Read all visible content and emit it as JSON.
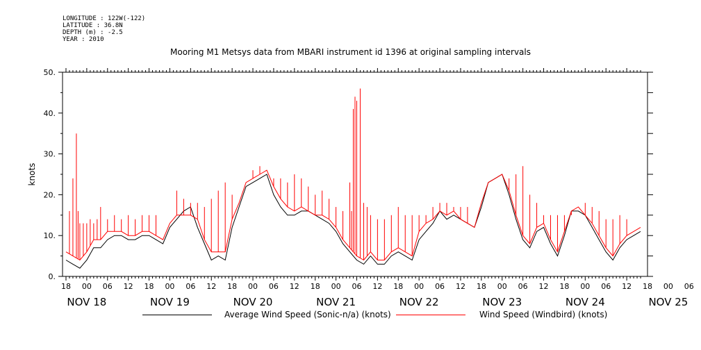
{
  "metadata": [
    "LONGITUDE : 122W(-122)",
    "LATITUDE : 36.8N",
    "DEPTH (m) : -2.5",
    "YEAR : 2010"
  ],
  "colors": {
    "sonic": "#000000",
    "windbird": "#ff0000"
  },
  "chart_data": {
    "type": "line",
    "title": "Mooring M1 Metsys data from MBARI instrument id 1396 at original sampling intervals",
    "xlabel": "",
    "ylabel": "knots",
    "ylim": [
      0,
      50
    ],
    "yticks": [
      "0.",
      "10.",
      "20.",
      "30.",
      "40.",
      "50."
    ],
    "x_unit": "hours since NOV 18 00:00",
    "xlim": [
      -7,
      162
    ],
    "hour_tick_labels": [
      "18",
      "00",
      "06",
      "12",
      "18",
      "00",
      "06",
      "12",
      "18",
      "00",
      "06",
      "12",
      "18",
      "00",
      "06",
      "12",
      "18",
      "00",
      "06",
      "12",
      "18",
      "00",
      "06",
      "12",
      "18",
      "00",
      "06",
      "12",
      "18",
      "00",
      "06",
      "12",
      "18"
    ],
    "day_labels": [
      "NOV 18",
      "NOV 19",
      "NOV 20",
      "NOV 21",
      "NOV 22",
      "NOV 23",
      "NOV 24",
      "NOV 25"
    ],
    "grid": false,
    "legend_position": "bottom",
    "series": [
      {
        "name": "Average Wind Speed (Sonic-n/a) (knots)",
        "x": [
          -6,
          -4,
          -2,
          0,
          2,
          4,
          6,
          8,
          10,
          12,
          14,
          16,
          18,
          20,
          22,
          24,
          26,
          28,
          30,
          32,
          34,
          36,
          38,
          40,
          42,
          44,
          46,
          48,
          50,
          52,
          54,
          56,
          58,
          60,
          62,
          64,
          66,
          68,
          70,
          72,
          74,
          76,
          78,
          80,
          82,
          84,
          86,
          88,
          90,
          92,
          94,
          96,
          98,
          100,
          102,
          104,
          106,
          108,
          110,
          112,
          114,
          116,
          118,
          120,
          122,
          124,
          126,
          128,
          130,
          132,
          134,
          136,
          138,
          140,
          142,
          144,
          146,
          148,
          150,
          152,
          154,
          156,
          158,
          160
        ],
        "values": [
          4,
          3,
          2,
          4,
          7,
          7,
          9,
          10,
          10,
          9,
          9,
          10,
          10,
          9,
          8,
          12,
          14,
          16,
          17,
          12,
          8,
          4,
          5,
          4,
          12,
          17,
          22,
          23,
          24,
          25,
          20,
          17,
          15,
          15,
          16,
          16,
          15,
          14,
          13,
          11,
          8,
          6,
          4,
          3,
          5,
          3,
          3,
          5,
          6,
          5,
          4,
          9,
          11,
          13,
          16,
          14,
          15,
          14,
          13,
          12,
          17,
          23,
          24,
          25,
          20,
          14,
          9,
          7,
          11,
          12,
          8,
          5,
          10,
          16,
          16,
          15,
          12,
          9,
          6,
          4,
          7,
          9,
          10,
          11
        ]
      },
      {
        "name": "Wind Speed (Windbird) (knots)",
        "x": [
          -6,
          -4,
          -2,
          0,
          2,
          4,
          6,
          8,
          10,
          12,
          14,
          16,
          18,
          20,
          22,
          24,
          26,
          28,
          30,
          32,
          34,
          36,
          38,
          40,
          42,
          44,
          46,
          48,
          50,
          52,
          54,
          56,
          58,
          60,
          62,
          64,
          66,
          68,
          70,
          72,
          74,
          76,
          78,
          80,
          82,
          84,
          86,
          88,
          90,
          92,
          94,
          96,
          98,
          100,
          102,
          104,
          106,
          108,
          110,
          112,
          114,
          116,
          118,
          120,
          122,
          124,
          126,
          128,
          130,
          132,
          134,
          136,
          138,
          140,
          142,
          144,
          146,
          148,
          150,
          152,
          154,
          156,
          158,
          160
        ],
        "values": [
          6,
          5,
          4,
          6,
          9,
          9,
          11,
          11,
          11,
          10,
          10,
          11,
          11,
          10,
          9,
          13,
          15,
          15,
          15,
          14,
          9,
          6,
          6,
          6,
          14,
          18,
          23,
          24,
          25,
          26,
          22,
          19,
          17,
          16,
          17,
          16,
          15,
          15,
          14,
          12,
          9,
          7,
          5,
          4,
          6,
          4,
          4,
          6,
          7,
          6,
          5,
          11,
          13,
          14,
          16,
          15,
          16,
          14,
          13,
          12,
          18,
          23,
          24,
          25,
          21,
          15,
          10,
          8,
          12,
          13,
          9,
          6,
          11,
          16,
          17,
          15,
          13,
          10,
          7,
          5,
          8,
          10,
          11,
          12
        ]
      }
    ],
    "spikes": {
      "series": "Wind Speed (Windbird) (knots)",
      "x": [
        -5,
        -4,
        -3,
        -2.5,
        -2,
        -1,
        0,
        1,
        2,
        3,
        4,
        6,
        8,
        10,
        12,
        14,
        16,
        18,
        20,
        26,
        28,
        30,
        32,
        34,
        36,
        38,
        40,
        42,
        44,
        48,
        50,
        52,
        54,
        56,
        58,
        60,
        62,
        64,
        66,
        68,
        70,
        72,
        74,
        76,
        76.5,
        77,
        77.5,
        78,
        79,
        80,
        81,
        82,
        84,
        86,
        88,
        90,
        92,
        94,
        96,
        98,
        100,
        102,
        104,
        106,
        108,
        110,
        122,
        124,
        126,
        128,
        130,
        132,
        134,
        136,
        138,
        140,
        142,
        144,
        146,
        148,
        150,
        152,
        154,
        156
      ],
      "values": [
        16,
        24,
        35,
        16,
        13,
        13,
        13,
        14,
        13,
        14,
        17,
        14,
        15,
        14,
        15,
        14,
        15,
        15,
        15,
        21,
        19,
        18,
        18,
        17,
        19,
        21,
        23,
        20,
        18,
        26,
        27,
        26,
        24,
        24,
        23,
        25,
        24,
        22,
        20,
        21,
        19,
        17,
        16,
        23,
        16,
        41,
        44,
        43,
        46,
        18,
        17,
        15,
        14,
        14,
        15,
        17,
        15,
        15,
        15,
        15,
        17,
        18,
        18,
        17,
        17,
        17,
        24,
        25,
        27,
        20,
        18,
        15,
        15,
        15,
        15,
        15,
        17,
        18,
        17,
        16,
        14,
        14,
        15,
        14
      ]
    }
  },
  "legend": {
    "sonic_label": "Average Wind Speed (Sonic-n/a) (knots)",
    "windbird_label": "Wind Speed (Windbird) (knots)"
  }
}
